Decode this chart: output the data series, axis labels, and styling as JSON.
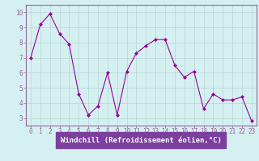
{
  "x": [
    0,
    1,
    2,
    3,
    4,
    5,
    6,
    7,
    8,
    9,
    10,
    11,
    12,
    13,
    14,
    15,
    16,
    17,
    18,
    19,
    20,
    21,
    22,
    23
  ],
  "y": [
    7.0,
    9.2,
    9.9,
    8.6,
    7.9,
    4.6,
    3.2,
    3.8,
    6.0,
    3.2,
    6.1,
    7.3,
    7.8,
    8.2,
    8.2,
    6.5,
    5.7,
    6.1,
    3.6,
    4.6,
    4.2,
    4.2,
    4.4,
    2.8
  ],
  "line_color": "#990099",
  "marker": "D",
  "marker_size": 2,
  "xlabel": "Windchill (Refroidissement éolien,°C)",
  "xlabel_color": "#ffffff",
  "xlabel_bg": "#7b3f9e",
  "ylim": [
    2.5,
    10.5
  ],
  "xlim": [
    -0.5,
    23.5
  ],
  "yticks": [
    3,
    4,
    5,
    6,
    7,
    8,
    9,
    10
  ],
  "xticks": [
    0,
    1,
    2,
    3,
    4,
    5,
    6,
    7,
    8,
    9,
    10,
    11,
    12,
    13,
    14,
    15,
    16,
    17,
    18,
    19,
    20,
    21,
    22,
    23
  ],
  "bg_color": "#d5f0f0",
  "grid_color": "#b8d4d4",
  "tick_label_color": "#660066",
  "tick_fontsize": 5.5,
  "xlabel_fontsize": 6.5,
  "spine_color": "#996699"
}
